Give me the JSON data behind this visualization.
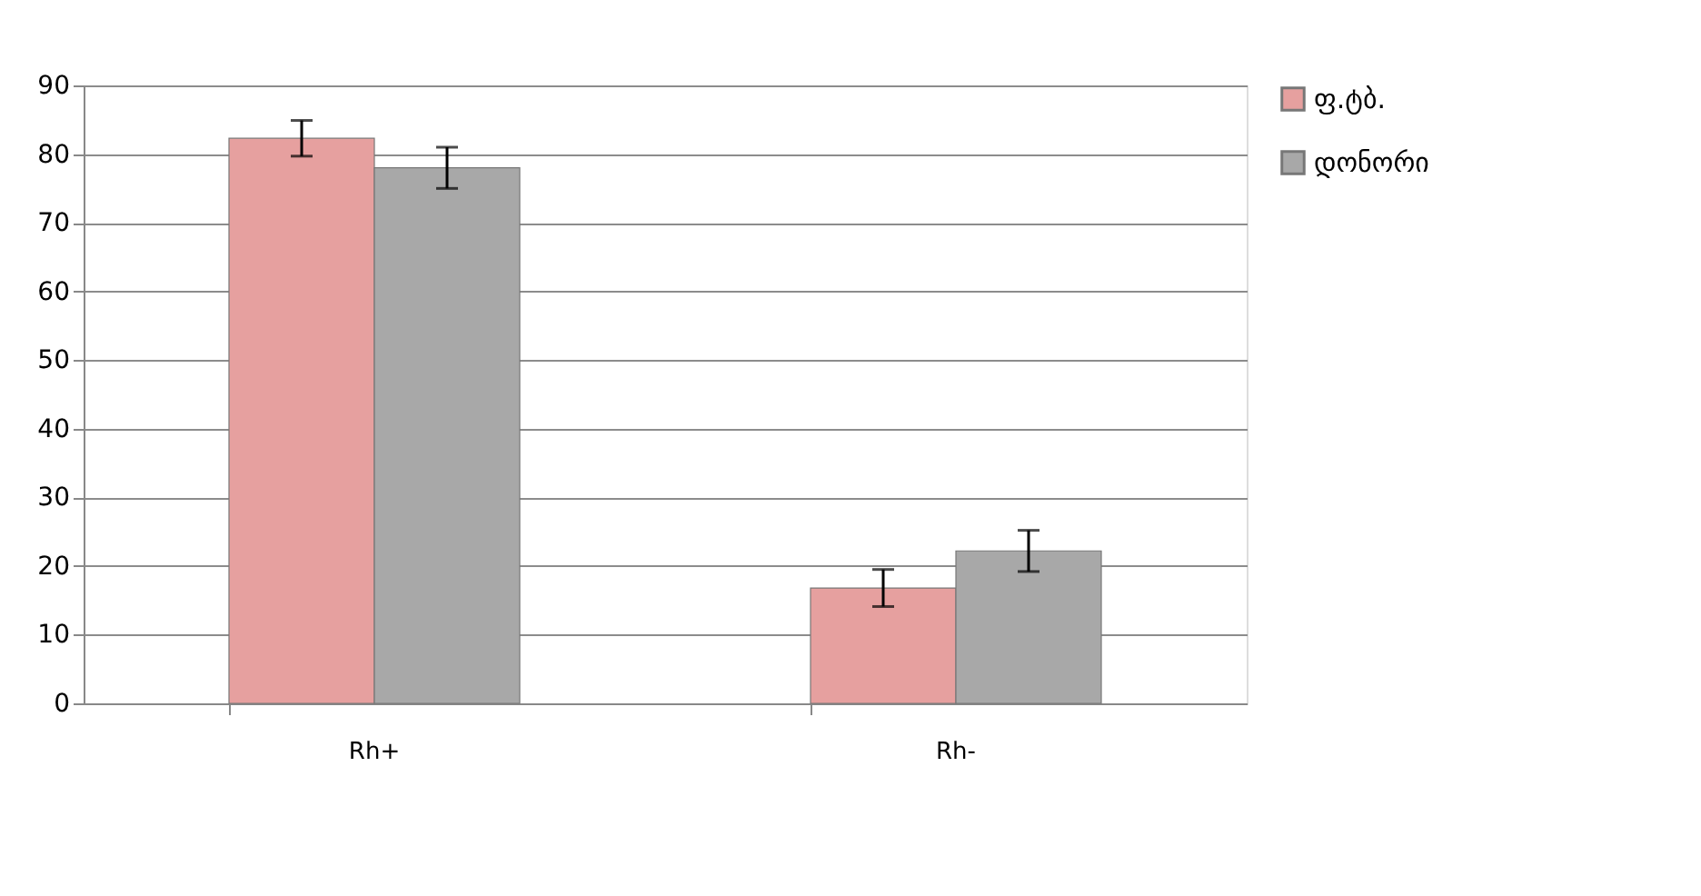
{
  "chart_data": {
    "type": "bar",
    "categories": [
      "Rh+",
      "Rh-"
    ],
    "series": [
      {
        "name": "ფ.ტბ.",
        "color": "#e6a09f",
        "values": [
          82.3,
          16.8
        ],
        "errors": [
          2.6,
          2.7
        ]
      },
      {
        "name": "დონორი",
        "color": "#a8a8a8",
        "values": [
          78,
          22.2
        ],
        "errors": [
          3,
          3
        ]
      }
    ],
    "ylim": [
      0,
      90
    ],
    "yticks": [
      0,
      10,
      20,
      30,
      40,
      50,
      60,
      70,
      80,
      90
    ],
    "grid": "y",
    "legend": "right"
  }
}
